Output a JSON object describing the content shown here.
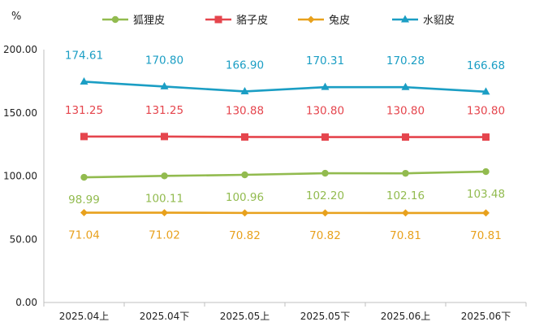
{
  "chart_data": {
    "type": "line",
    "unit": "%",
    "categories": [
      "2025.04上",
      "2025.04下",
      "2025.05上",
      "2025.05下",
      "2025.06上",
      "2025.06下"
    ],
    "ylim": [
      0,
      200
    ],
    "yticks": [
      "0.00",
      "50.00",
      "100.00",
      "150.00",
      "200.00"
    ],
    "grid": false,
    "legend_position": "top",
    "series": [
      {
        "name": "狐狸皮",
        "color": "#92bb4f",
        "marker": "circle",
        "values": [
          98.99,
          100.11,
          100.96,
          102.2,
          102.16,
          103.48
        ],
        "labels": [
          "98.99",
          "100.11",
          "100.96",
          "102.20",
          "102.16",
          "103.48"
        ],
        "label_position": "below"
      },
      {
        "name": "貉子皮",
        "color": "#e5454d",
        "marker": "square",
        "values": [
          131.25,
          131.25,
          130.88,
          130.8,
          130.8,
          130.8
        ],
        "labels": [
          "131.25",
          "131.25",
          "130.88",
          "130.80",
          "130.80",
          "130.80"
        ],
        "label_position": "above"
      },
      {
        "name": "兔皮",
        "color": "#e8a11d",
        "marker": "diamond",
        "values": [
          71.04,
          71.02,
          70.82,
          70.82,
          70.81,
          70.81
        ],
        "labels": [
          "71.04",
          "71.02",
          "70.82",
          "70.82",
          "70.81",
          "70.81"
        ],
        "label_position": "below"
      },
      {
        "name": "水貂皮",
        "color": "#1b9ec4",
        "marker": "triangle",
        "values": [
          174.61,
          170.8,
          166.9,
          170.31,
          170.28,
          166.68
        ],
        "labels": [
          "174.61",
          "170.80",
          "166.90",
          "170.31",
          "170.28",
          "166.68"
        ],
        "label_position": "above"
      }
    ]
  }
}
